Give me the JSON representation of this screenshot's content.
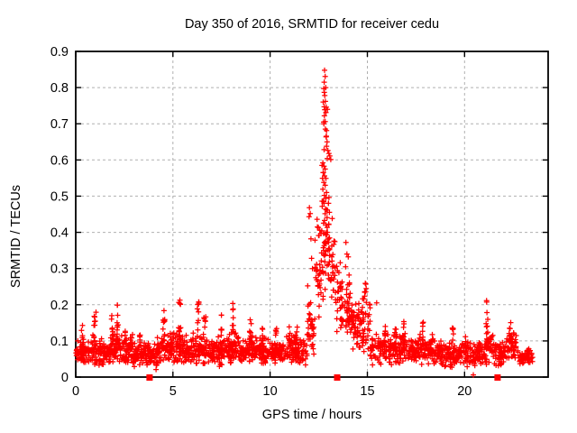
{
  "window": {
    "background": "#ffffff"
  },
  "chart_data": {
    "type": "scatter",
    "title": "Day 350 of 2016, SRMTID for receiver cedu",
    "xlabel": "GPS time / hours",
    "ylabel": "SRMTID / TECUs",
    "xlim": [
      0,
      24.3
    ],
    "ylim": [
      0,
      0.9
    ],
    "xticks": {
      "values": [
        0,
        5,
        10,
        15,
        20
      ],
      "labels": [
        "0",
        "5",
        "10",
        "15",
        "20"
      ]
    },
    "yticks": {
      "values": [
        0,
        0.1,
        0.2,
        0.3,
        0.4,
        0.5,
        0.6,
        0.7,
        0.8,
        0.9
      ],
      "labels": [
        "0",
        "0.1",
        "0.2",
        "0.3",
        "0.4",
        "0.5",
        "0.6",
        "0.7",
        "0.8",
        "0.9"
      ]
    },
    "grid": "dashed, at every major tick",
    "legend": "none",
    "marker": "plus-cross",
    "colors": {
      "points": "#ff0000",
      "grid": "#b0b0b0",
      "axis": "#000000",
      "background": "#ffffff"
    },
    "band_segments": [
      [
        0.0,
        0.6,
        0.03,
        0.11,
        55
      ],
      [
        0.6,
        1.2,
        0.03,
        0.12,
        55
      ],
      [
        1.2,
        1.8,
        0.03,
        0.11,
        55
      ],
      [
        1.8,
        2.4,
        0.04,
        0.13,
        60
      ],
      [
        2.4,
        3.0,
        0.03,
        0.12,
        55
      ],
      [
        3.0,
        3.6,
        0.02,
        0.1,
        50
      ],
      [
        3.6,
        4.2,
        0.02,
        0.1,
        50
      ],
      [
        4.2,
        4.8,
        0.03,
        0.12,
        55
      ],
      [
        4.8,
        5.4,
        0.03,
        0.13,
        60
      ],
      [
        5.4,
        6.0,
        0.03,
        0.12,
        55
      ],
      [
        6.0,
        6.6,
        0.03,
        0.13,
        60
      ],
      [
        6.6,
        7.2,
        0.03,
        0.11,
        55
      ],
      [
        7.2,
        7.8,
        0.02,
        0.12,
        55
      ],
      [
        7.8,
        8.4,
        0.03,
        0.13,
        60
      ],
      [
        8.4,
        9.0,
        0.03,
        0.11,
        55
      ],
      [
        9.0,
        9.6,
        0.03,
        0.12,
        55
      ],
      [
        9.6,
        10.2,
        0.03,
        0.11,
        50
      ],
      [
        10.2,
        10.8,
        0.03,
        0.11,
        50
      ],
      [
        10.8,
        11.4,
        0.03,
        0.12,
        55
      ],
      [
        11.4,
        11.9,
        0.03,
        0.11,
        40
      ],
      [
        11.9,
        12.3,
        0.05,
        0.22,
        35
      ],
      [
        12.3,
        12.65,
        0.14,
        0.45,
        32
      ],
      [
        12.65,
        13.05,
        0.18,
        0.6,
        60
      ],
      [
        12.72,
        12.95,
        0.6,
        0.84,
        8
      ],
      [
        13.05,
        13.35,
        0.18,
        0.44,
        25
      ],
      [
        13.35,
        13.65,
        0.12,
        0.33,
        25
      ],
      [
        13.65,
        14.2,
        0.08,
        0.28,
        50
      ],
      [
        14.2,
        14.7,
        0.06,
        0.22,
        45
      ],
      [
        14.7,
        15.15,
        0.05,
        0.25,
        40
      ],
      [
        15.15,
        15.8,
        0.03,
        0.12,
        50
      ],
      [
        15.8,
        16.4,
        0.03,
        0.13,
        50
      ],
      [
        16.4,
        17.0,
        0.03,
        0.12,
        50
      ],
      [
        17.0,
        17.6,
        0.03,
        0.11,
        50
      ],
      [
        17.6,
        18.2,
        0.03,
        0.12,
        50
      ],
      [
        18.2,
        18.8,
        0.03,
        0.11,
        50
      ],
      [
        18.8,
        19.4,
        0.02,
        0.1,
        48
      ],
      [
        19.4,
        20.0,
        0.02,
        0.1,
        48
      ],
      [
        20.0,
        20.6,
        0.02,
        0.1,
        48
      ],
      [
        20.6,
        21.1,
        0.03,
        0.11,
        42
      ],
      [
        21.1,
        21.6,
        0.03,
        0.13,
        45
      ],
      [
        21.6,
        22.1,
        0.02,
        0.1,
        42
      ],
      [
        22.1,
        22.7,
        0.04,
        0.14,
        50
      ],
      [
        22.7,
        23.5,
        0.03,
        0.09,
        55
      ]
    ],
    "spikes": [
      [
        0.35,
        0.06,
        0.1,
        0.145,
        5
      ],
      [
        1.0,
        0.07,
        0.11,
        0.185,
        8
      ],
      [
        1.9,
        0.07,
        0.11,
        0.175,
        7
      ],
      [
        2.15,
        0.06,
        0.12,
        0.2,
        8
      ],
      [
        2.55,
        0.05,
        0.1,
        0.15,
        5
      ],
      [
        3.3,
        0.05,
        0.09,
        0.135,
        5
      ],
      [
        4.55,
        0.08,
        0.11,
        0.19,
        9
      ],
      [
        5.35,
        0.07,
        0.12,
        0.215,
        9
      ],
      [
        6.3,
        0.07,
        0.12,
        0.21,
        9
      ],
      [
        6.65,
        0.06,
        0.11,
        0.17,
        6
      ],
      [
        7.5,
        0.06,
        0.11,
        0.18,
        7
      ],
      [
        8.1,
        0.06,
        0.12,
        0.205,
        8
      ],
      [
        9.0,
        0.06,
        0.1,
        0.165,
        7
      ],
      [
        9.6,
        0.05,
        0.1,
        0.15,
        5
      ],
      [
        10.3,
        0.05,
        0.1,
        0.145,
        5
      ],
      [
        11.0,
        0.05,
        0.1,
        0.14,
        5
      ],
      [
        11.35,
        0.05,
        0.1,
        0.155,
        5
      ],
      [
        14.9,
        0.06,
        0.2,
        0.26,
        5
      ],
      [
        15.9,
        0.06,
        0.11,
        0.145,
        6
      ],
      [
        16.45,
        0.05,
        0.1,
        0.135,
        5
      ],
      [
        16.9,
        0.05,
        0.1,
        0.155,
        6
      ],
      [
        17.85,
        0.06,
        0.1,
        0.16,
        7
      ],
      [
        18.35,
        0.05,
        0.09,
        0.125,
        5
      ],
      [
        19.4,
        0.05,
        0.09,
        0.15,
        6
      ],
      [
        20.05,
        0.04,
        0.08,
        0.12,
        4
      ],
      [
        21.15,
        0.05,
        0.12,
        0.215,
        9
      ],
      [
        22.35,
        0.06,
        0.1,
        0.155,
        6
      ]
    ],
    "outlier_points": [
      [
        12.8,
        0.848
      ],
      [
        12.83,
        0.831
      ],
      [
        12.78,
        0.815
      ],
      [
        12.86,
        0.8
      ],
      [
        12.76,
        0.797
      ],
      [
        12.81,
        0.778
      ],
      [
        12.84,
        0.762
      ],
      [
        12.78,
        0.747
      ],
      [
        12.81,
        0.739
      ],
      [
        12.87,
        0.731
      ],
      [
        12.79,
        0.722
      ],
      [
        12.83,
        0.706
      ],
      [
        12.76,
        0.7
      ],
      [
        12.9,
        0.681
      ],
      [
        12.88,
        0.664
      ],
      [
        12.93,
        0.65
      ],
      [
        12.9,
        0.638
      ],
      [
        12.97,
        0.626
      ],
      [
        13.02,
        0.618
      ],
      [
        13.07,
        0.611
      ],
      [
        12.94,
        0.604
      ],
      [
        13.12,
        0.601
      ],
      [
        12.71,
        0.592
      ],
      [
        12.77,
        0.583
      ],
      [
        12.83,
        0.575
      ],
      [
        12.74,
        0.565
      ],
      [
        12.8,
        0.556
      ],
      [
        12.87,
        0.549
      ],
      [
        12.76,
        0.538
      ],
      [
        12.83,
        0.53
      ],
      [
        12.71,
        0.519
      ],
      [
        12.9,
        0.51
      ],
      [
        12.79,
        0.502
      ],
      [
        12.86,
        0.494
      ],
      [
        12.73,
        0.486
      ],
      [
        12.68,
        0.472
      ],
      [
        12.02,
        0.468
      ],
      [
        12.06,
        0.452
      ],
      [
        12.0,
        0.443
      ],
      [
        12.1,
        0.382
      ],
      [
        12.13,
        0.328
      ],
      [
        12.18,
        0.3
      ],
      [
        11.93,
        0.252
      ],
      [
        13.9,
        0.372
      ],
      [
        13.95,
        0.34
      ],
      [
        14.02,
        0.332
      ],
      [
        13.88,
        0.305
      ],
      [
        14.06,
        0.282
      ],
      [
        14.0,
        0.255
      ],
      [
        13.93,
        0.228
      ],
      [
        15.48,
        0.205
      ],
      [
        20.45,
        0.006
      ]
    ],
    "zero_squares_x": [
      3.8,
      13.45,
      21.7
    ]
  }
}
